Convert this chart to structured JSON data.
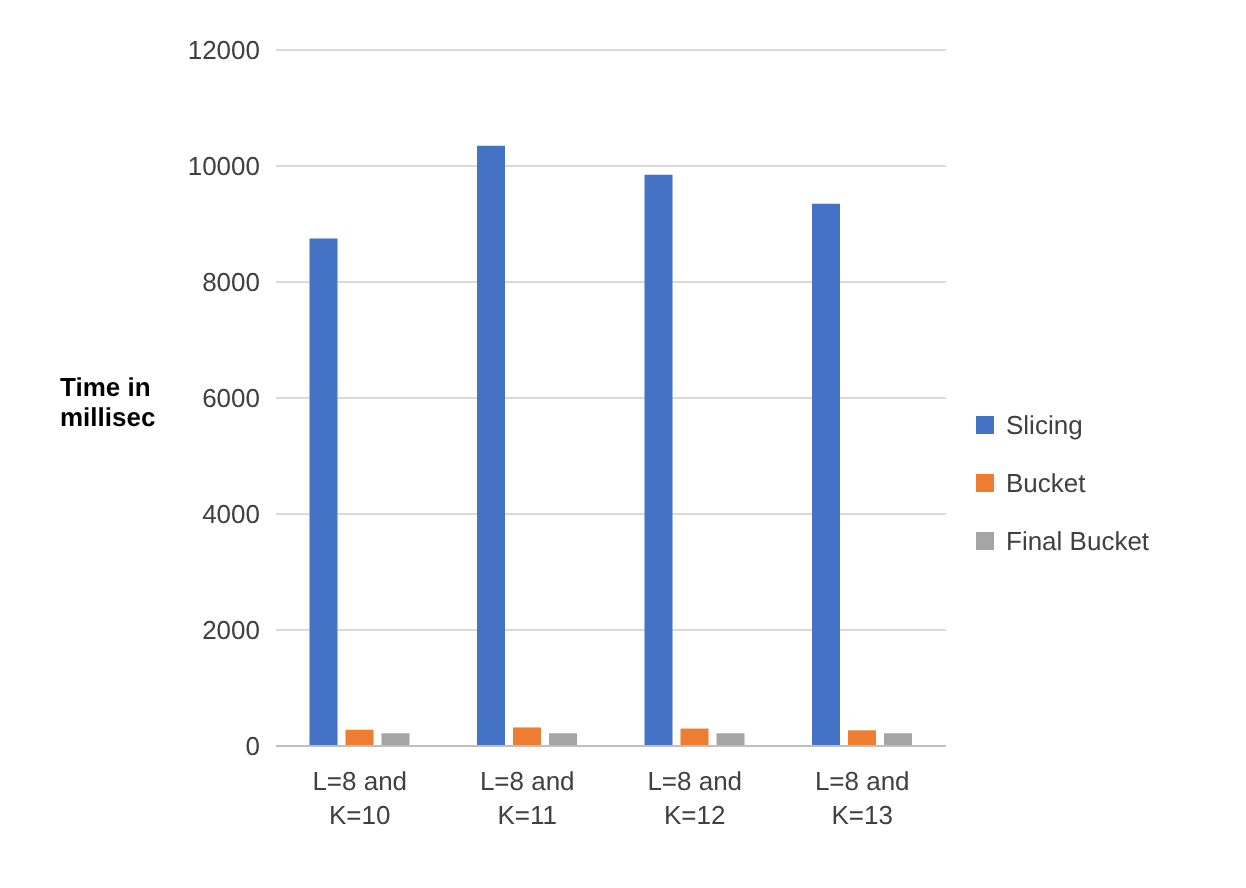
{
  "chart_data": {
    "type": "bar",
    "ylabel": "Time in millisec",
    "categories": [
      "L=8 and K=10",
      "L=8 and K=11",
      "L=8 and K=12",
      "L=8 and K=13"
    ],
    "series": [
      {
        "name": "Slicing",
        "color": "#4472c4",
        "values": [
          8750,
          10350,
          9850,
          9350
        ]
      },
      {
        "name": "Bucket",
        "color": "#ed7d31",
        "values": [
          280,
          320,
          300,
          270
        ]
      },
      {
        "name": "Final Bucket",
        "color": "#a5a5a5",
        "values": [
          220,
          220,
          220,
          220
        ]
      }
    ],
    "ylim": [
      0,
      12000
    ],
    "yticks": [
      0,
      2000,
      4000,
      6000,
      8000,
      10000,
      12000
    ],
    "grid": "y",
    "legend": "right"
  }
}
